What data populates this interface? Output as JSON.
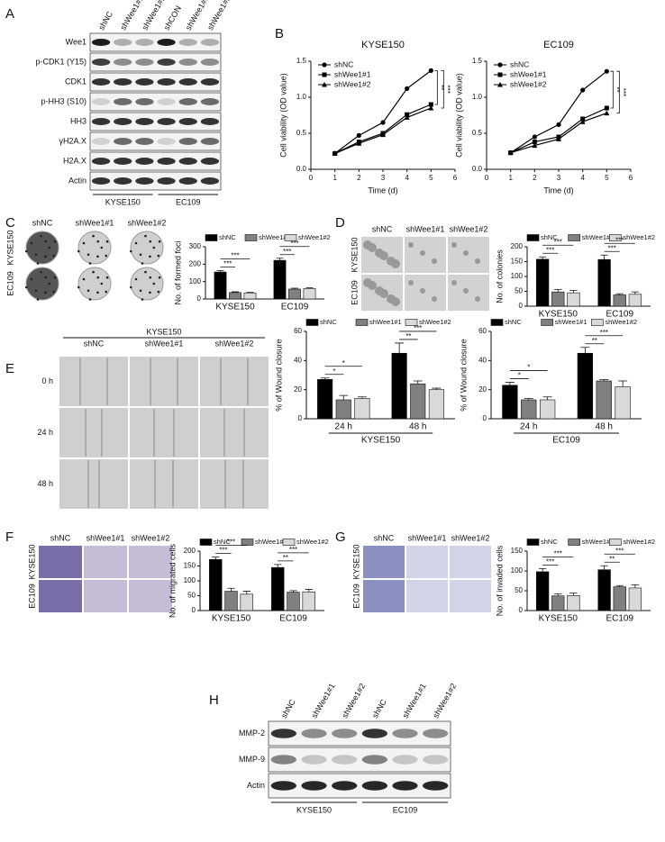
{
  "panel_letters": [
    "A",
    "B",
    "C",
    "D",
    "E",
    "F",
    "G",
    "H"
  ],
  "blot_A": {
    "lanes": [
      "shNC",
      "shWee1#1",
      "shWee1#2",
      "shCON",
      "shWee1#1",
      "shWee1#2"
    ],
    "rows": [
      "Wee1",
      "p-CDK1 (Y15)",
      "CDK1",
      "p-HH3 (S10)",
      "HH3",
      "γH2A.X",
      "H2A.X",
      "Actin"
    ],
    "groups": [
      "KYSE150",
      "EC109"
    ]
  },
  "blot_H": {
    "lanes": [
      "shNC",
      "shWee1#1",
      "shWee1#2",
      "shNC",
      "shWee1#1",
      "shWee1#2"
    ],
    "rows": [
      "MMP-2",
      "MMP-9",
      "Actin"
    ],
    "groups": [
      "KYSE150",
      "EC109"
    ]
  },
  "images_C": {
    "columns": [
      "shNC",
      "shWee1#1",
      "shWee1#2"
    ],
    "rows": [
      "KYSE150",
      "EC109"
    ]
  },
  "images_D": {
    "columns": [
      "shNC",
      "shWee1#1",
      "shWee1#2"
    ],
    "rows": [
      "KYSE150",
      "EC109"
    ]
  },
  "images_E": {
    "header": "KYSE150",
    "columns": [
      "shNC",
      "shWee1#1",
      "shWee1#2"
    ],
    "rows": [
      "0 h",
      "24 h",
      "48 h"
    ]
  },
  "images_F": {
    "columns": [
      "shNC",
      "shWee1#1",
      "shWee1#2"
    ],
    "rows": [
      "KYSE150",
      "EC109"
    ]
  },
  "images_G": {
    "columns": [
      "shNC",
      "shWee1#1",
      "shWee1#2"
    ],
    "rows": [
      "KYSE150",
      "EC109"
    ]
  },
  "chart_data": [
    {
      "type": "line",
      "title": "KYSE150",
      "x_label": "Time (d)",
      "y_label": "Cell viability (OD value)",
      "x": [
        1,
        2,
        3,
        4,
        5
      ],
      "xlim": [
        0,
        6
      ],
      "xticks": [
        0,
        1,
        2,
        3,
        4,
        5,
        6
      ],
      "ylim": [
        0,
        1.5
      ],
      "yticks": [
        {
          "value": 0,
          "label": "0.0"
        },
        {
          "value": 0.5,
          "label": "0.5"
        },
        {
          "value": 1,
          "label": "1.0"
        },
        {
          "value": 1.5,
          "label": "1.5"
        }
      ],
      "series": [
        {
          "name": "shNC",
          "color": "#000000",
          "marker": "circle",
          "values": [
            0.22,
            0.47,
            0.65,
            1.12,
            1.37
          ]
        },
        {
          "name": "shWee1#1",
          "color": "#000000",
          "marker": "square",
          "values": [
            0.22,
            0.38,
            0.5,
            0.76,
            0.9
          ]
        },
        {
          "name": "shWee1#2",
          "color": "#000000",
          "marker": "triangle",
          "values": [
            0.22,
            0.36,
            0.48,
            0.72,
            0.85
          ]
        }
      ],
      "significance": [
        "**",
        "***"
      ]
    },
    {
      "type": "line",
      "title": "EC109",
      "x_label": "Time (d)",
      "y_label": "Cell viability (OD value)",
      "x": [
        1,
        2,
        3,
        4,
        5
      ],
      "xlim": [
        0,
        6
      ],
      "xticks": [
        0,
        1,
        2,
        3,
        4,
        5,
        6
      ],
      "ylim": [
        0,
        1.5
      ],
      "yticks": [
        {
          "value": 0,
          "label": "0.0"
        },
        {
          "value": 0.5,
          "label": "0.5"
        },
        {
          "value": 1,
          "label": "1.0"
        },
        {
          "value": 1.5,
          "label": "1.5"
        }
      ],
      "series": [
        {
          "name": "shNC",
          "color": "#000000",
          "marker": "circle",
          "values": [
            0.23,
            0.45,
            0.62,
            1.1,
            1.36
          ]
        },
        {
          "name": "shWee1#1",
          "color": "#000000",
          "marker": "square",
          "values": [
            0.23,
            0.38,
            0.45,
            0.7,
            0.85
          ]
        },
        {
          "name": "shWee1#2",
          "color": "#000000",
          "marker": "triangle",
          "values": [
            0.23,
            0.33,
            0.42,
            0.66,
            0.78
          ]
        }
      ],
      "significance": [
        "**",
        "***"
      ]
    },
    {
      "type": "bar",
      "y_label": "No. of formed foci",
      "categories": [
        "KYSE150",
        "EC109"
      ],
      "ylim": [
        0,
        300
      ],
      "yticks": [
        0,
        100,
        200,
        300
      ],
      "series": [
        {
          "name": "shNC",
          "color": "#000000",
          "values": [
            155,
            222
          ],
          "errors": [
            8,
            12
          ]
        },
        {
          "name": "shWee1#1",
          "color": "#808080",
          "values": [
            37,
            57
          ],
          "errors": [
            4,
            5
          ]
        },
        {
          "name": "shWee1#2",
          "color": "#d9d9d9",
          "values": [
            35,
            60
          ],
          "errors": [
            3,
            4
          ]
        }
      ],
      "significance": [
        "***",
        "***",
        "***",
        "***"
      ]
    },
    {
      "type": "bar",
      "y_label": "No. of colonies",
      "categories": [
        "KYSE150",
        "EC109"
      ],
      "ylim": [
        0,
        200
      ],
      "yticks": [
        0,
        50,
        100,
        150,
        200
      ],
      "series": [
        {
          "name": "shNC",
          "color": "#000000",
          "values": [
            158,
            157
          ],
          "errors": [
            8,
            15
          ]
        },
        {
          "name": "shWee1#1",
          "color": "#808080",
          "values": [
            48,
            38
          ],
          "errors": [
            8,
            4
          ]
        },
        {
          "name": "shWee1#2",
          "color": "#d9d9d9",
          "values": [
            45,
            40
          ],
          "errors": [
            8,
            8
          ]
        }
      ],
      "significance": [
        "***",
        "***",
        "***",
        "***"
      ]
    },
    {
      "type": "bar",
      "y_label": "% of Wound closure",
      "group_label": "KYSE150",
      "categories": [
        "24 h",
        "48 h"
      ],
      "ylim": [
        0,
        60
      ],
      "yticks": [
        0,
        20,
        40,
        60
      ],
      "series": [
        {
          "name": "shNC",
          "color": "#000000",
          "values": [
            27,
            45
          ],
          "errors": [
            1,
            7
          ]
        },
        {
          "name": "shWee1#1",
          "color": "#808080",
          "values": [
            13,
            24
          ],
          "errors": [
            3,
            2
          ]
        },
        {
          "name": "shWee1#2",
          "color": "#d9d9d9",
          "values": [
            14,
            20
          ],
          "errors": [
            1,
            1
          ]
        }
      ],
      "significance": [
        "*",
        "*",
        "**",
        "***"
      ]
    },
    {
      "type": "bar",
      "y_label": "% of Wound closure",
      "group_label": "EC109",
      "categories": [
        "24 h",
        "48 h"
      ],
      "ylim": [
        0,
        60
      ],
      "yticks": [
        0,
        20,
        40,
        60
      ],
      "series": [
        {
          "name": "shNC",
          "color": "#000000",
          "values": [
            23,
            45
          ],
          "errors": [
            2,
            4
          ]
        },
        {
          "name": "shWee1#1",
          "color": "#808080",
          "values": [
            13,
            26
          ],
          "errors": [
            1,
            1
          ]
        },
        {
          "name": "shWee1#2",
          "color": "#d9d9d9",
          "values": [
            13,
            22
          ],
          "errors": [
            2,
            4
          ]
        }
      ],
      "significance": [
        "*",
        "*",
        "**",
        "***"
      ]
    },
    {
      "type": "bar",
      "y_label": "No. of migrated cells",
      "categories": [
        "KYSE150",
        "EC109"
      ],
      "ylim": [
        0,
        200
      ],
      "yticks": [
        0,
        50,
        100,
        150,
        200
      ],
      "series": [
        {
          "name": "shNC",
          "color": "#000000",
          "values": [
            172,
            145
          ],
          "errors": [
            8,
            10
          ]
        },
        {
          "name": "shWee1#1",
          "color": "#808080",
          "values": [
            65,
            62
          ],
          "errors": [
            10,
            5
          ]
        },
        {
          "name": "shWee1#2",
          "color": "#d9d9d9",
          "values": [
            55,
            63
          ],
          "errors": [
            10,
            8
          ]
        }
      ],
      "significance": [
        "***",
        "***",
        "**",
        "***"
      ]
    },
    {
      "type": "bar",
      "y_label": "No. of invaded cells",
      "categories": [
        "KYSE150",
        "EC109"
      ],
      "ylim": [
        0,
        150
      ],
      "yticks": [
        0,
        50,
        100,
        150
      ],
      "series": [
        {
          "name": "shNC",
          "color": "#000000",
          "values": [
            98,
            103
          ],
          "errors": [
            8,
            10
          ]
        },
        {
          "name": "shWee1#1",
          "color": "#808080",
          "values": [
            37,
            60
          ],
          "errors": [
            5,
            3
          ]
        },
        {
          "name": "shWee1#2",
          "color": "#d9d9d9",
          "values": [
            38,
            57
          ],
          "errors": [
            6,
            8
          ]
        }
      ],
      "significance": [
        "***",
        "***",
        "**",
        "***"
      ]
    }
  ]
}
